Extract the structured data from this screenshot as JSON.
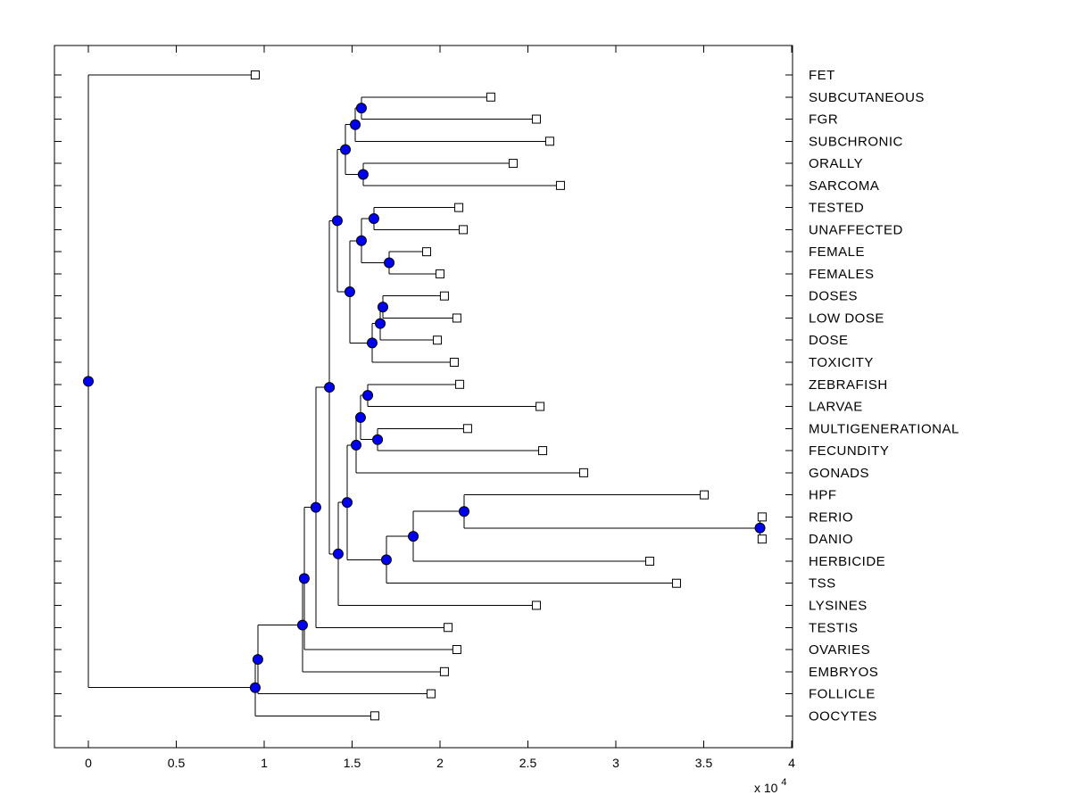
{
  "figure": {
    "background": "#ffffff",
    "colors": {
      "line": "#000000",
      "branch_marker_fill": "#0000F0",
      "branch_marker_edge": "#000000",
      "leaf_marker_fill": "#ffffff",
      "leaf_marker_edge": "#000000",
      "text": "#000000"
    },
    "axes": {
      "x_ticks": [
        {
          "value": 0,
          "label": "0"
        },
        {
          "value": 5000,
          "label": "0.5"
        },
        {
          "value": 10000,
          "label": "1"
        },
        {
          "value": 15000,
          "label": "1.5"
        },
        {
          "value": 20000,
          "label": "2"
        },
        {
          "value": 25000,
          "label": "2.5"
        },
        {
          "value": 30000,
          "label": "3"
        },
        {
          "value": 35000,
          "label": "3.5"
        },
        {
          "value": 40000,
          "label": "4"
        }
      ],
      "exponent_label": "x 10",
      "exponent_power": "4"
    }
  },
  "chart_data": {
    "type": "dendrogram",
    "orientation": "left-to-right",
    "title": "",
    "xlabel": "",
    "ylabel": "",
    "x_axis": {
      "min": 0,
      "max": 40000,
      "tick_step": 5000,
      "exponent_note": "x 10^4",
      "grid": false
    },
    "legend": "none",
    "marker_legend": {
      "internal_branch_nodes": "filled blue circles",
      "leaf_nodes": "open white squares"
    },
    "leaves_top_to_bottom": [
      {
        "label": "FET",
        "distance": 9490
      },
      {
        "label": "SUBCUTANEOUS",
        "distance": 22890
      },
      {
        "label": "FGR",
        "distance": 25480
      },
      {
        "label": "SUBCHRONIC",
        "distance": 26240
      },
      {
        "label": "ORALLY",
        "distance": 24160
      },
      {
        "label": "SARCOMA",
        "distance": 26850
      },
      {
        "label": "TESTED",
        "distance": 21070
      },
      {
        "label": "UNAFFECTED",
        "distance": 21320
      },
      {
        "label": "FEMALE",
        "distance": 19240
      },
      {
        "label": "FEMALES",
        "distance": 20000
      },
      {
        "label": "DOSES",
        "distance": 20250
      },
      {
        "label": "LOW DOSE",
        "distance": 20960
      },
      {
        "label": "DOSE",
        "distance": 19850
      },
      {
        "label": "TOXICITY",
        "distance": 20810
      },
      {
        "label": "ZEBRAFISH",
        "distance": 21120
      },
      {
        "label": "LARVAE",
        "distance": 25690
      },
      {
        "label": "MULTIGENERATIONAL",
        "distance": 21570
      },
      {
        "label": "FECUNDITY",
        "distance": 25840
      },
      {
        "label": "GONADS",
        "distance": 28170
      },
      {
        "label": "HPF",
        "distance": 35030
      },
      {
        "label": "RERIO",
        "distance": 38320
      },
      {
        "label": "DANIO",
        "distance": 38320
      },
      {
        "label": "HERBICIDE",
        "distance": 31930
      },
      {
        "label": "TSS",
        "distance": 33450
      },
      {
        "label": "LYSINES",
        "distance": 25480
      },
      {
        "label": "TESTIS",
        "distance": 20460
      },
      {
        "label": "OVARIES",
        "distance": 20960
      },
      {
        "label": "EMBRYOS",
        "distance": 20250
      },
      {
        "label": "FOLLICLE",
        "distance": 19490
      },
      {
        "label": "OOCYTES",
        "distance": 16290
      }
    ],
    "tree": {
      "d": 0,
      "c": [
        {
          "label": "FET",
          "d": 9490
        },
        {
          "d": 9490,
          "c": [
            {
              "d": 9640,
              "c": [
                {
                  "d": 12180,
                  "c": [
                    {
                      "d": 12280,
                      "c": [
                        {
                          "d": 12940,
                          "c": [
                            {
                              "d": 13710,
                              "c": [
                                {
                                  "d": 14160,
                                  "c": [
                                    {
                                      "d": 14620,
                                      "c": [
                                        {
                                          "d": 15180,
                                          "c": [
                                            {
                                              "d": 15530,
                                              "c": [
                                                {
                                                  "label": "SUBCUTANEOUS",
                                                  "d": 22890
                                                },
                                                {
                                                  "label": "FGR",
                                                  "d": 25480
                                                }
                                              ]
                                            },
                                            {
                                              "label": "SUBCHRONIC",
                                              "d": 26240
                                            }
                                          ]
                                        },
                                        {
                                          "d": 15630,
                                          "c": [
                                            {
                                              "label": "ORALLY",
                                              "d": 24160
                                            },
                                            {
                                              "label": "SARCOMA",
                                              "d": 26850
                                            }
                                          ]
                                        }
                                      ]
                                    },
                                    {
                                      "d": 14870,
                                      "c": [
                                        {
                                          "d": 15530,
                                          "c": [
                                            {
                                              "d": 16240,
                                              "c": [
                                                {
                                                  "label": "TESTED",
                                                  "d": 21070
                                                },
                                                {
                                                  "label": "UNAFFECTED",
                                                  "d": 21320
                                                }
                                              ]
                                            },
                                            {
                                              "d": 17110,
                                              "c": [
                                                {
                                                  "label": "FEMALE",
                                                  "d": 19240
                                                },
                                                {
                                                  "label": "FEMALES",
                                                  "d": 20000
                                                }
                                              ]
                                            }
                                          ]
                                        },
                                        {
                                          "d": 16140,
                                          "c": [
                                            {
                                              "d": 16600,
                                              "c": [
                                                {
                                                  "d": 16750,
                                                  "c": [
                                                    {
                                                      "label": "DOSES",
                                                      "d": 20250
                                                    },
                                                    {
                                                      "label": "LOW DOSE",
                                                      "d": 20960
                                                    }
                                                  ]
                                                },
                                                {
                                                  "label": "DOSE",
                                                  "d": 19850
                                                }
                                              ]
                                            },
                                            {
                                              "label": "TOXICITY",
                                              "d": 20810
                                            }
                                          ]
                                        }
                                      ]
                                    }
                                  ]
                                },
                                {
                                  "d": 14210,
                                  "c": [
                                    {
                                      "d": 14720,
                                      "c": [
                                        {
                                          "d": 15230,
                                          "c": [
                                            {
                                              "d": 15480,
                                              "c": [
                                                {
                                                  "d": 15890,
                                                  "c": [
                                                    {
                                                      "label": "ZEBRAFISH",
                                                      "d": 21120
                                                    },
                                                    {
                                                      "label": "LARVAE",
                                                      "d": 25690
                                                    }
                                                  ]
                                                },
                                                {
                                                  "d": 16450,
                                                  "c": [
                                                    {
                                                      "label": "MULTIGENERATIONAL",
                                                      "d": 21570
                                                    },
                                                    {
                                                      "label": "FECUNDITY",
                                                      "d": 25840
                                                    }
                                                  ]
                                                }
                                              ]
                                            },
                                            {
                                              "label": "GONADS",
                                              "d": 28170
                                            }
                                          ]
                                        },
                                        {
                                          "d": 16950,
                                          "c": [
                                            {
                                              "d": 18480,
                                              "c": [
                                                {
                                                  "d": 21370,
                                                  "c": [
                                                    {
                                                      "label": "HPF",
                                                      "d": 35030
                                                    },
                                                    {
                                                      "d": 38200,
                                                      "c": [
                                                        {
                                                          "label": "RERIO",
                                                          "d": 38320
                                                        },
                                                        {
                                                          "label": "DANIO",
                                                          "d": 38320
                                                        }
                                                      ]
                                                    }
                                                  ]
                                                },
                                                {
                                                  "label": "HERBICIDE",
                                                  "d": 31930
                                                }
                                              ]
                                            },
                                            {
                                              "label": "TSS",
                                              "d": 33450
                                            }
                                          ]
                                        }
                                      ]
                                    },
                                    {
                                      "label": "LYSINES",
                                      "d": 25480
                                    }
                                  ]
                                }
                              ]
                            },
                            {
                              "label": "TESTIS",
                              "d": 20460
                            }
                          ]
                        },
                        {
                          "label": "OVARIES",
                          "d": 20960
                        }
                      ]
                    },
                    {
                      "label": "EMBRYOS",
                      "d": 20250
                    }
                  ]
                },
                {
                  "label": "FOLLICLE",
                  "d": 19490
                }
              ]
            },
            {
              "label": "OOCYTES",
              "d": 16290
            }
          ]
        }
      ]
    }
  }
}
